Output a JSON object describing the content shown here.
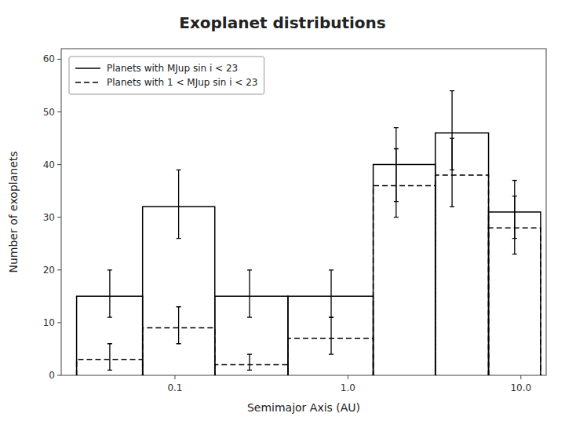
{
  "chart_data": {
    "type": "histogram",
    "title": "Exoplanet distributions",
    "x_label": "Semimajor Axis (AU)",
    "y_label": "Number of exoplanets",
    "log": "x",
    "xlim": [
      0.022,
      14.0
    ],
    "xticks": [
      0.1,
      {
        "value": 1.0,
        "label": "1.0"
      },
      {
        "value": 10.0,
        "label": "10.0"
      }
    ],
    "ylim": [
      0,
      62
    ],
    "yticks": [
      0,
      10,
      20,
      30,
      40,
      50,
      60
    ],
    "grid": false,
    "legend": "upper left",
    "series": [
      {
        "name": "Planets with MJup sin i < 23",
        "color": "black",
        "line_style": "solid",
        "bins": [
          0.027,
          0.065,
          0.17,
          0.45,
          1.4,
          3.2,
          6.5,
          13.0
        ],
        "values": [
          15,
          32,
          15,
          15,
          40,
          46,
          31
        ],
        "error_x": [
          0.042,
          0.105,
          0.27,
          0.8,
          1.9,
          4.0,
          9.2
        ],
        "errors_lo": [
          4,
          6,
          4,
          4,
          7,
          7,
          5
        ],
        "errors_hi": [
          5,
          7,
          5,
          5,
          7,
          8,
          6
        ]
      },
      {
        "name": "Planets with 1 < MJup sin i < 23",
        "color": "black",
        "line_style": "dashed",
        "bins": [
          0.027,
          0.065,
          0.17,
          0.45,
          1.4,
          3.2,
          6.5,
          13.0
        ],
        "values": [
          3,
          9,
          2,
          7,
          36,
          38,
          28
        ],
        "error_x": [
          0.042,
          0.105,
          0.27,
          0.8,
          1.9,
          4.0,
          9.2
        ],
        "errors_lo": [
          2,
          3,
          1,
          3,
          6,
          6,
          5
        ],
        "errors_hi": [
          3,
          4,
          2,
          4,
          7,
          7,
          6
        ]
      }
    ]
  }
}
